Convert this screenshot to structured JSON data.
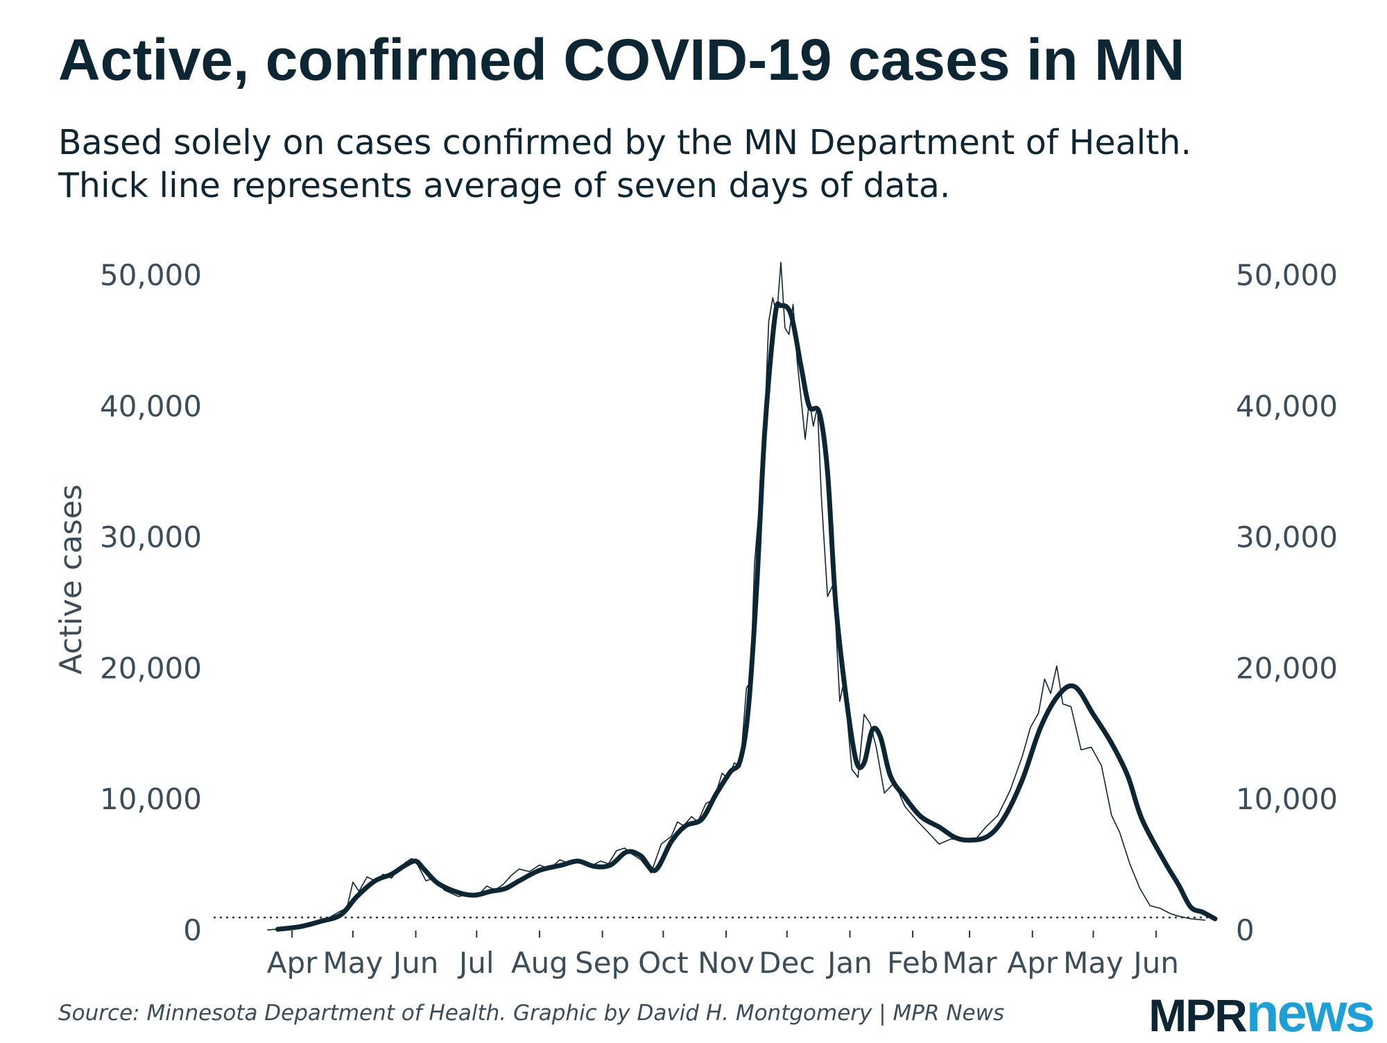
{
  "title": "Active, confirmed COVID-19 cases in MN",
  "subtitle_lines": [
    "Based solely on cases confirmed by the MN Department of Health.",
    "Thick line represents average of seven days of data."
  ],
  "source": "Source: Minnesota Department of Health. Graphic by David H. Montgomery | MPR News",
  "logo": {
    "part1": "MPR",
    "part2": "news"
  },
  "colors": {
    "line": "#0d2634",
    "text": "#3a4d5a",
    "logo_accent": "#1d9fd8"
  },
  "chart_data": {
    "type": "line",
    "ylabel": "Active cases",
    "ylim": [
      0,
      50000
    ],
    "yticks": [
      0,
      10000,
      20000,
      30000,
      40000,
      50000
    ],
    "ytick_labels": [
      "0",
      "10,000",
      "20,000",
      "30,000",
      "40,000",
      "50,000"
    ],
    "yaxis_both_sides": true,
    "grid": false,
    "xlim": [
      "2020-03-20",
      "2021-06-30"
    ],
    "xticks": [
      "2020-04-01",
      "2020-05-01",
      "2020-06-01",
      "2020-07-01",
      "2020-08-01",
      "2020-09-01",
      "2020-10-01",
      "2020-11-01",
      "2020-12-01",
      "2021-01-01",
      "2021-02-01",
      "2021-03-01",
      "2021-04-01",
      "2021-05-01",
      "2021-06-01"
    ],
    "xtick_labels": [
      "Apr",
      "May",
      "Jun",
      "Jul",
      "Aug",
      "Sep",
      "Oct",
      "Nov",
      "Dec",
      "Jan",
      "Feb",
      "Mar",
      "Apr",
      "May",
      "Jun"
    ],
    "reference_line": {
      "y": 1000,
      "style": "dotted"
    },
    "series": [
      {
        "style": "thick",
        "points": [
          [
            "2020-03-25",
            100
          ],
          [
            "2020-04-05",
            300
          ],
          [
            "2020-04-15",
            700
          ],
          [
            "2020-04-25",
            1200
          ],
          [
            "2020-05-03",
            2600
          ],
          [
            "2020-05-12",
            3800
          ],
          [
            "2020-05-20",
            4300
          ],
          [
            "2020-05-27",
            5000
          ],
          [
            "2020-06-01",
            5300
          ],
          [
            "2020-06-05",
            4700
          ],
          [
            "2020-06-12",
            3600
          ],
          [
            "2020-06-22",
            2900
          ],
          [
            "2020-06-30",
            2700
          ],
          [
            "2020-07-08",
            3000
          ],
          [
            "2020-07-15",
            3200
          ],
          [
            "2020-07-22",
            3800
          ],
          [
            "2020-08-01",
            4600
          ],
          [
            "2020-08-12",
            5000
          ],
          [
            "2020-08-20",
            5300
          ],
          [
            "2020-08-28",
            4900
          ],
          [
            "2020-09-05",
            5000
          ],
          [
            "2020-09-13",
            6000
          ],
          [
            "2020-09-20",
            5700
          ],
          [
            "2020-09-27",
            4600
          ],
          [
            "2020-10-05",
            6800
          ],
          [
            "2020-10-12",
            8000
          ],
          [
            "2020-10-20",
            8500
          ],
          [
            "2020-10-27",
            10400
          ],
          [
            "2020-11-03",
            12100
          ],
          [
            "2020-11-08",
            13000
          ],
          [
            "2020-11-12",
            17000
          ],
          [
            "2020-11-16",
            26000
          ],
          [
            "2020-11-20",
            38000
          ],
          [
            "2020-11-25",
            46800
          ],
          [
            "2020-11-28",
            47700
          ],
          [
            "2020-12-03",
            47000
          ],
          [
            "2020-12-08",
            43000
          ],
          [
            "2020-12-12",
            40000
          ],
          [
            "2020-12-17",
            39500
          ],
          [
            "2020-12-21",
            35000
          ],
          [
            "2020-12-25",
            25000
          ],
          [
            "2020-12-30",
            18000
          ],
          [
            "2021-01-04",
            13000
          ],
          [
            "2021-01-08",
            12800
          ],
          [
            "2021-01-12",
            15300
          ],
          [
            "2021-01-16",
            14800
          ],
          [
            "2021-01-21",
            11800
          ],
          [
            "2021-01-28",
            10200
          ],
          [
            "2021-02-05",
            8700
          ],
          [
            "2021-02-14",
            7900
          ],
          [
            "2021-02-22",
            7100
          ],
          [
            "2021-03-01",
            6900
          ],
          [
            "2021-03-10",
            7200
          ],
          [
            "2021-03-18",
            8600
          ],
          [
            "2021-03-27",
            11500
          ],
          [
            "2021-04-05",
            15500
          ],
          [
            "2021-04-14",
            18000
          ],
          [
            "2021-04-22",
            18600
          ],
          [
            "2021-05-01",
            16500
          ],
          [
            "2021-05-10",
            14300
          ],
          [
            "2021-05-18",
            11800
          ],
          [
            "2021-05-25",
            8500
          ],
          [
            "2021-06-05",
            5300
          ],
          [
            "2021-06-12",
            3500
          ],
          [
            "2021-06-18",
            1800
          ],
          [
            "2021-06-24",
            1400
          ],
          [
            "2021-06-30",
            900
          ]
        ]
      },
      {
        "style": "thin",
        "points": [
          [
            "2020-03-20",
            50
          ],
          [
            "2020-03-28",
            150
          ],
          [
            "2020-04-06",
            350
          ],
          [
            "2020-04-16",
            700
          ],
          [
            "2020-04-25",
            1500
          ],
          [
            "2020-04-28",
            1700
          ],
          [
            "2020-05-01",
            3700
          ],
          [
            "2020-05-04",
            3000
          ],
          [
            "2020-05-08",
            4100
          ],
          [
            "2020-05-12",
            3800
          ],
          [
            "2020-05-16",
            4300
          ],
          [
            "2020-05-20",
            4000
          ],
          [
            "2020-05-24",
            4800
          ],
          [
            "2020-05-27",
            5200
          ],
          [
            "2020-05-30",
            5500
          ],
          [
            "2020-06-02",
            5000
          ],
          [
            "2020-06-06",
            3800
          ],
          [
            "2020-06-10",
            4000
          ],
          [
            "2020-06-15",
            3100
          ],
          [
            "2020-06-22",
            2600
          ],
          [
            "2020-06-28",
            2800
          ],
          [
            "2020-07-03",
            2900
          ],
          [
            "2020-07-06",
            3400
          ],
          [
            "2020-07-10",
            3100
          ],
          [
            "2020-07-14",
            3500
          ],
          [
            "2020-07-18",
            4200
          ],
          [
            "2020-07-22",
            4700
          ],
          [
            "2020-07-27",
            4500
          ],
          [
            "2020-08-01",
            5000
          ],
          [
            "2020-08-06",
            4700
          ],
          [
            "2020-08-11",
            5400
          ],
          [
            "2020-08-16",
            5100
          ],
          [
            "2020-08-21",
            5400
          ],
          [
            "2020-08-26",
            4900
          ],
          [
            "2020-08-31",
            5300
          ],
          [
            "2020-09-04",
            5100
          ],
          [
            "2020-09-08",
            6100
          ],
          [
            "2020-09-12",
            6300
          ],
          [
            "2020-09-16",
            5800
          ],
          [
            "2020-09-20",
            5400
          ],
          [
            "2020-09-25",
            4400
          ],
          [
            "2020-09-30",
            6600
          ],
          [
            "2020-10-05",
            7200
          ],
          [
            "2020-10-08",
            8300
          ],
          [
            "2020-10-11",
            8000
          ],
          [
            "2020-10-15",
            8700
          ],
          [
            "2020-10-18",
            8300
          ],
          [
            "2020-10-22",
            9700
          ],
          [
            "2020-10-26",
            10000
          ],
          [
            "2020-10-30",
            12000
          ],
          [
            "2020-11-02",
            11600
          ],
          [
            "2020-11-05",
            12800
          ],
          [
            "2020-11-08",
            12500
          ],
          [
            "2020-11-11",
            18500
          ],
          [
            "2020-11-13",
            19000
          ],
          [
            "2020-11-15",
            28000
          ],
          [
            "2020-11-17",
            31800
          ],
          [
            "2020-11-19",
            35000
          ],
          [
            "2020-11-22",
            46500
          ],
          [
            "2020-11-24",
            48300
          ],
          [
            "2020-11-26",
            47000
          ],
          [
            "2020-11-28",
            51000
          ],
          [
            "2020-11-30",
            46000
          ],
          [
            "2020-12-02",
            45500
          ],
          [
            "2020-12-04",
            47800
          ],
          [
            "2020-12-06",
            43500
          ],
          [
            "2020-12-08",
            40500
          ],
          [
            "2020-12-10",
            37500
          ],
          [
            "2020-12-12",
            40500
          ],
          [
            "2020-12-14",
            38500
          ],
          [
            "2020-12-16",
            40000
          ],
          [
            "2020-12-18",
            33000
          ],
          [
            "2020-12-21",
            25500
          ],
          [
            "2020-12-24",
            26500
          ],
          [
            "2020-12-27",
            17500
          ],
          [
            "2020-12-29",
            19000
          ],
          [
            "2021-01-02",
            12300
          ],
          [
            "2021-01-05",
            11700
          ],
          [
            "2021-01-08",
            16500
          ],
          [
            "2021-01-11",
            15800
          ],
          [
            "2021-01-14",
            14000
          ],
          [
            "2021-01-18",
            10500
          ],
          [
            "2021-01-23",
            11300
          ],
          [
            "2021-01-28",
            9500
          ],
          [
            "2021-02-03",
            8400
          ],
          [
            "2021-02-08",
            7600
          ],
          [
            "2021-02-14",
            6600
          ],
          [
            "2021-02-20",
            7000
          ],
          [
            "2021-02-25",
            6900
          ],
          [
            "2021-03-03",
            6800
          ],
          [
            "2021-03-09",
            7900
          ],
          [
            "2021-03-15",
            8800
          ],
          [
            "2021-03-21",
            10700
          ],
          [
            "2021-03-27",
            13300
          ],
          [
            "2021-03-31",
            15500
          ],
          [
            "2021-04-04",
            16600
          ],
          [
            "2021-04-07",
            19200
          ],
          [
            "2021-04-10",
            18100
          ],
          [
            "2021-04-13",
            20200
          ],
          [
            "2021-04-16",
            17300
          ],
          [
            "2021-04-20",
            17100
          ],
          [
            "2021-04-25",
            13800
          ],
          [
            "2021-04-30",
            14000
          ],
          [
            "2021-05-05",
            12600
          ],
          [
            "2021-05-10",
            8800
          ],
          [
            "2021-05-14",
            7500
          ],
          [
            "2021-05-19",
            5100
          ],
          [
            "2021-05-24",
            3200
          ],
          [
            "2021-05-29",
            1900
          ],
          [
            "2021-06-03",
            1700
          ],
          [
            "2021-06-08",
            1300
          ],
          [
            "2021-06-12",
            1100
          ],
          [
            "2021-06-18",
            900
          ],
          [
            "2021-06-25",
            800
          ]
        ]
      }
    ]
  }
}
